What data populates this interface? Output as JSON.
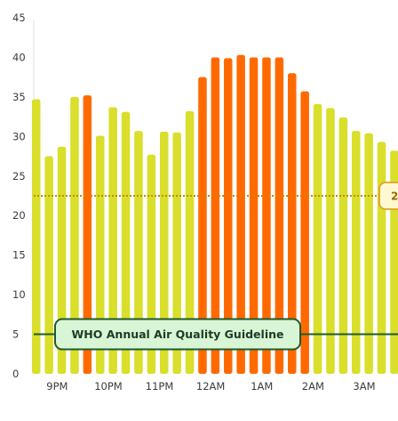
{
  "chart_data": {
    "type": "bar",
    "ylim": [
      0,
      45
    ],
    "yticks": [
      "0",
      "5",
      "10",
      "15",
      "20",
      "25",
      "30",
      "35",
      "40",
      "45"
    ],
    "xticks": [
      "9PM",
      "10PM",
      "11PM",
      "12AM",
      "1AM",
      "2AM",
      "3AM"
    ],
    "values": [
      34.7,
      27.5,
      28.7,
      35.0,
      35.2,
      30.1,
      33.7,
      33.1,
      30.7,
      27.7,
      30.6,
      30.5,
      33.2,
      37.5,
      40.0,
      39.9,
      40.3,
      40.0,
      40.0,
      40.0,
      38.0,
      35.7,
      34.1,
      33.6,
      32.4,
      30.7,
      30.4,
      29.3,
      28.2
    ],
    "high_threshold": 35.1,
    "colors": {
      "low": "#d9df2a",
      "high": "#ff6a00",
      "guide_line": "#1f5a2a",
      "avg_line": "#c08a00"
    },
    "who_guideline": {
      "value": 5,
      "label": "WHO Annual Air Quality Guideline"
    },
    "average": {
      "value": 22.5,
      "label": "2"
    }
  }
}
